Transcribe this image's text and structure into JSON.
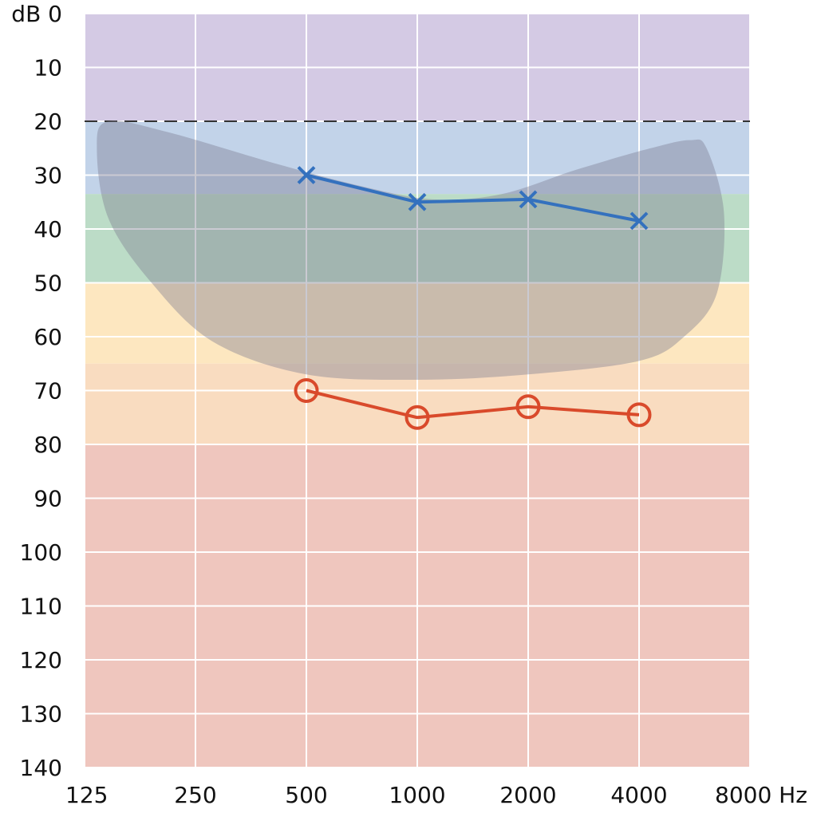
{
  "chart_data": {
    "type": "line",
    "x_scale": "log2",
    "y_inverted": true,
    "xlim": [
      125,
      8000
    ],
    "ylim": [
      0,
      140
    ],
    "x_ticks": [
      125,
      250,
      500,
      1000,
      2000,
      4000,
      8000
    ],
    "x_tick_labels": [
      "125",
      "250",
      "500",
      "1000",
      "2000",
      "4000",
      "8000 Hz"
    ],
    "y_ticks": [
      0,
      10,
      20,
      30,
      40,
      50,
      60,
      70,
      80,
      90,
      100,
      110,
      120,
      130,
      140
    ],
    "y_tick_labels": [
      "dB 0",
      "10",
      "20",
      "30",
      "40",
      "50",
      "60",
      "70",
      "80",
      "90",
      "100",
      "110",
      "120",
      "130",
      "140"
    ],
    "grid": true,
    "bands": [
      {
        "from": 0,
        "to": 20,
        "color": "#d4cae4"
      },
      {
        "from": 20,
        "to": 33.5,
        "color": "#c2d3e9"
      },
      {
        "from": 33.5,
        "to": 50,
        "color": "#bcdcc7"
      },
      {
        "from": 50,
        "to": 65,
        "color": "#fde7c0"
      },
      {
        "from": 65,
        "to": 80,
        "color": "#f9dcc0"
      },
      {
        "from": 80,
        "to": 140,
        "color": "#efc6be"
      }
    ],
    "reference_line": {
      "y": 20,
      "style": "dashed",
      "color": "#333333"
    },
    "shaded_region": {
      "color": "#7a7a8e",
      "opacity": 0.4,
      "outline": [
        {
          "x": 145,
          "y": 20
        },
        {
          "x": 210,
          "y": 22
        },
        {
          "x": 420,
          "y": 28
        },
        {
          "x": 700,
          "y": 32
        },
        {
          "x": 1100,
          "y": 34.5
        },
        {
          "x": 1700,
          "y": 33.5
        },
        {
          "x": 2700,
          "y": 29
        },
        {
          "x": 4300,
          "y": 25
        },
        {
          "x": 5500,
          "y": 23.5
        },
        {
          "x": 6100,
          "y": 25
        },
        {
          "x": 6800,
          "y": 37
        },
        {
          "x": 6500,
          "y": 52
        },
        {
          "x": 5300,
          "y": 60
        },
        {
          "x": 4000,
          "y": 64.5
        },
        {
          "x": 2000,
          "y": 67
        },
        {
          "x": 1000,
          "y": 68
        },
        {
          "x": 500,
          "y": 67
        },
        {
          "x": 280,
          "y": 61
        },
        {
          "x": 190,
          "y": 50
        },
        {
          "x": 145,
          "y": 38
        },
        {
          "x": 135,
          "y": 25
        }
      ]
    },
    "series": [
      {
        "marker": "x",
        "color": "#3471be",
        "x": [
          500,
          1000,
          2000,
          4000
        ],
        "y": [
          30,
          35,
          34.5,
          38.5
        ]
      },
      {
        "marker": "o",
        "color": "#d94a2b",
        "x": [
          500,
          1000,
          2000,
          4000
        ],
        "y": [
          70,
          75,
          73,
          74.5
        ]
      }
    ]
  }
}
